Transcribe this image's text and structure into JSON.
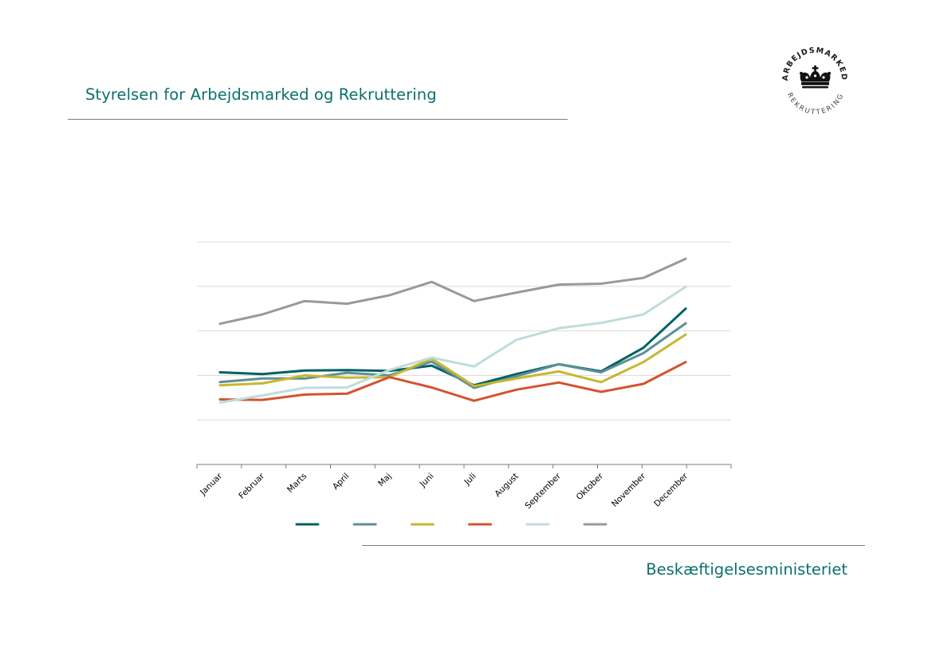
{
  "header": {
    "title": "Styrelsen for Arbejdsmarked og Rekruttering"
  },
  "logo": {
    "text_top": "ARBEJDSMARKED",
    "text_bottom": "REKRUTTERING",
    "icon": "crown-icon"
  },
  "footer": {
    "ministry": "Beskæftigelsesministeriet"
  },
  "colors": {
    "brand": "#0b706d",
    "grid": "#dcdcdc",
    "axis": "#7c7c7c"
  },
  "chart_data": {
    "type": "line",
    "title": "",
    "xlabel": "",
    "ylabel": "",
    "categories": [
      "Januar",
      "Februar",
      "Marts",
      "April",
      "Maj",
      "Juni",
      "Juli",
      "August",
      "September",
      "Oktober",
      "November",
      "December"
    ],
    "ylim": [
      0,
      5
    ],
    "y_gridlines": [
      1,
      2,
      3,
      4,
      5
    ],
    "grid": true,
    "legend": "bottom-center",
    "series": [
      {
        "name": "",
        "color": "#006163",
        "values": [
          2.07,
          2.03,
          2.11,
          2.12,
          2.1,
          2.22,
          1.78,
          2.03,
          2.25,
          2.09,
          2.62,
          3.5
        ]
      },
      {
        "name": "",
        "color": "#5d9095",
        "values": [
          1.85,
          1.93,
          1.93,
          2.06,
          2.0,
          2.31,
          1.72,
          1.98,
          2.25,
          2.07,
          2.5,
          3.17
        ]
      },
      {
        "name": "",
        "color": "#c7b730",
        "values": [
          1.78,
          1.82,
          2.0,
          1.95,
          1.96,
          2.38,
          1.76,
          1.93,
          2.09,
          1.85,
          2.3,
          2.92
        ]
      },
      {
        "name": "",
        "color": "#d4532f",
        "values": [
          1.46,
          1.45,
          1.57,
          1.59,
          1.96,
          1.73,
          1.43,
          1.68,
          1.84,
          1.63,
          1.81,
          2.3
        ]
      },
      {
        "name": "",
        "color": "#bfdcdc",
        "values": [
          1.39,
          1.55,
          1.72,
          1.73,
          2.12,
          2.4,
          2.2,
          2.8,
          3.06,
          3.18,
          3.37,
          3.99
        ]
      },
      {
        "name": "",
        "color": "#999999",
        "values": [
          3.16,
          3.37,
          3.67,
          3.61,
          3.8,
          4.1,
          3.67,
          3.86,
          4.04,
          4.06,
          4.19,
          4.62
        ]
      }
    ]
  }
}
